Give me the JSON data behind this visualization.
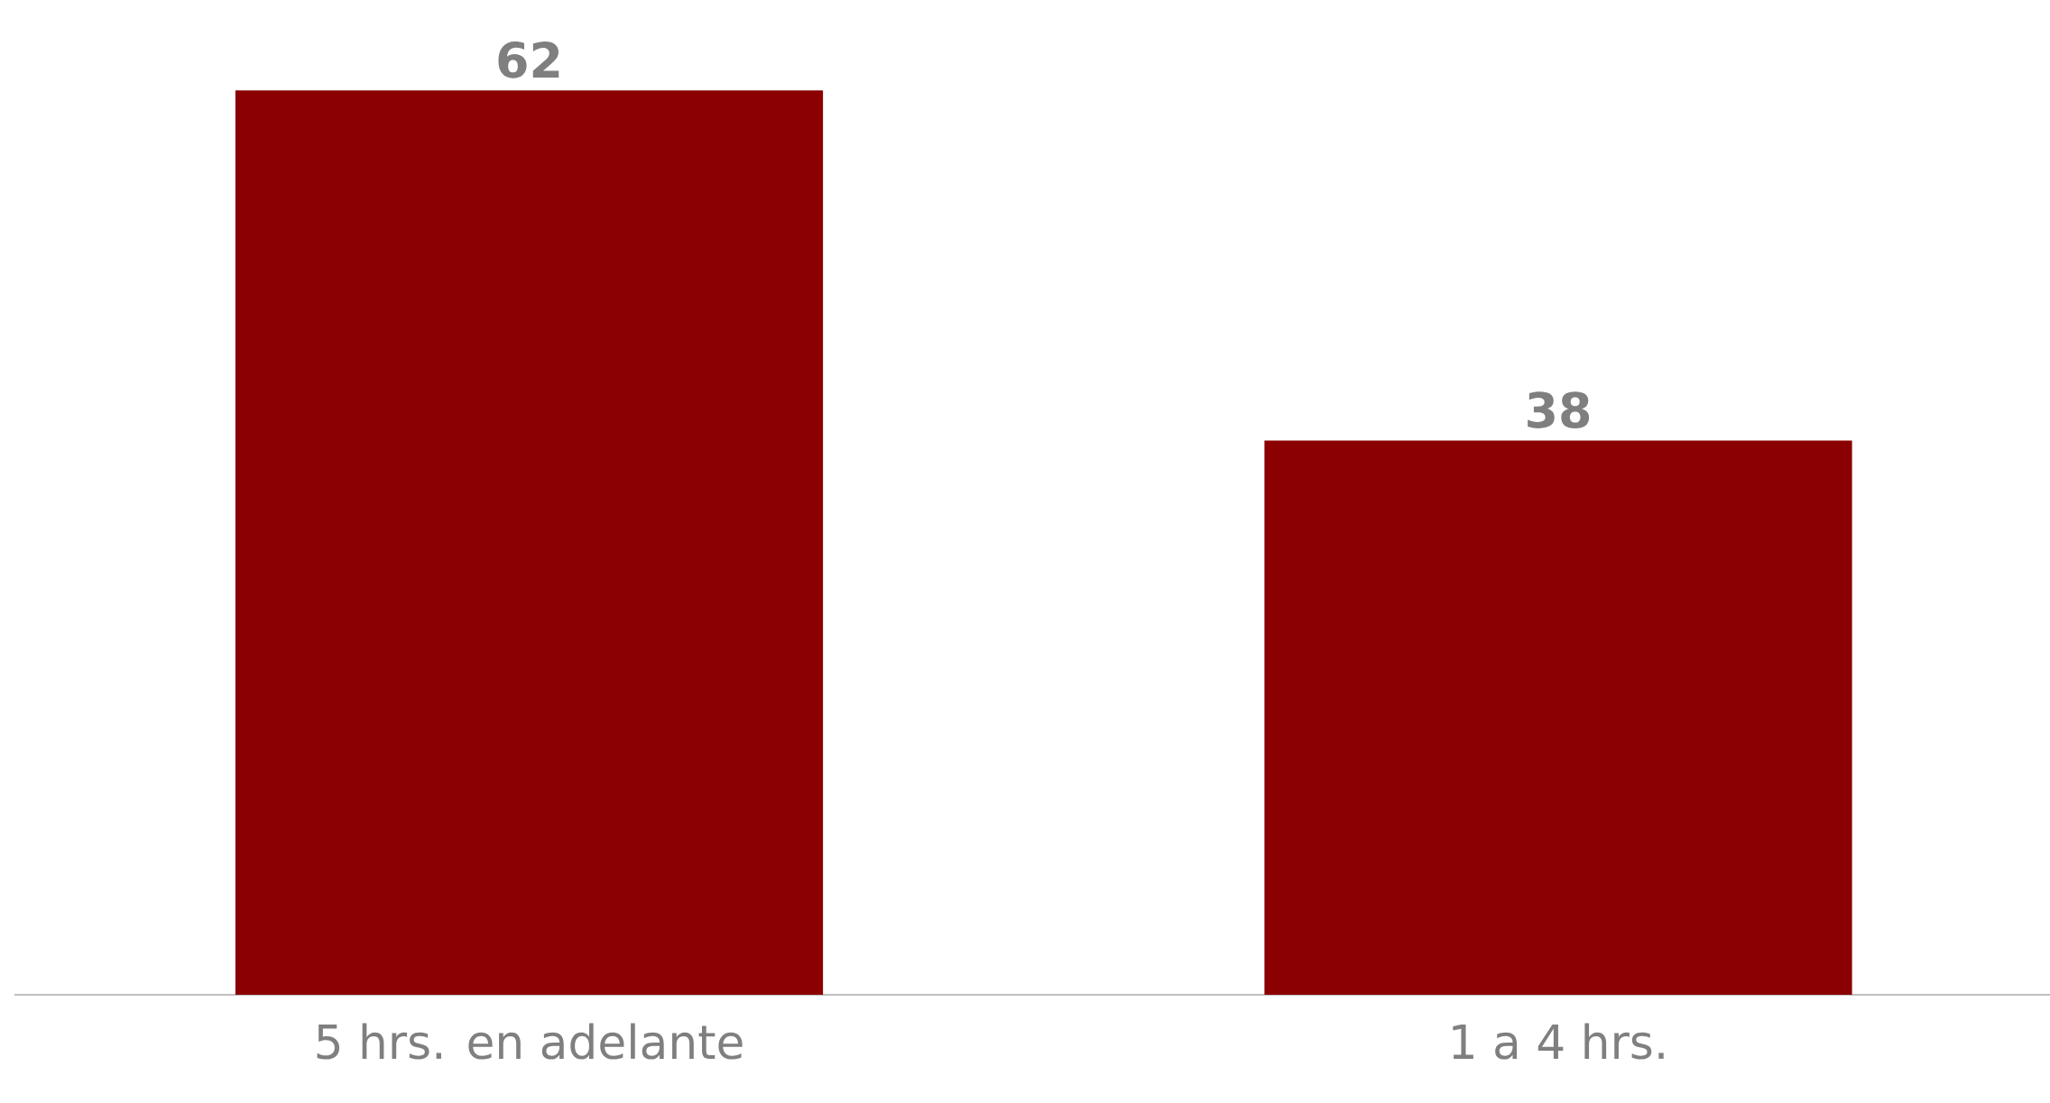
{
  "chart_data": {
    "type": "bar",
    "categories": [
      "5 hrs. en adelante",
      "1 a 4 hrs."
    ],
    "values": [
      62,
      38
    ],
    "color": "#8b0000",
    "data_labels": true
  }
}
